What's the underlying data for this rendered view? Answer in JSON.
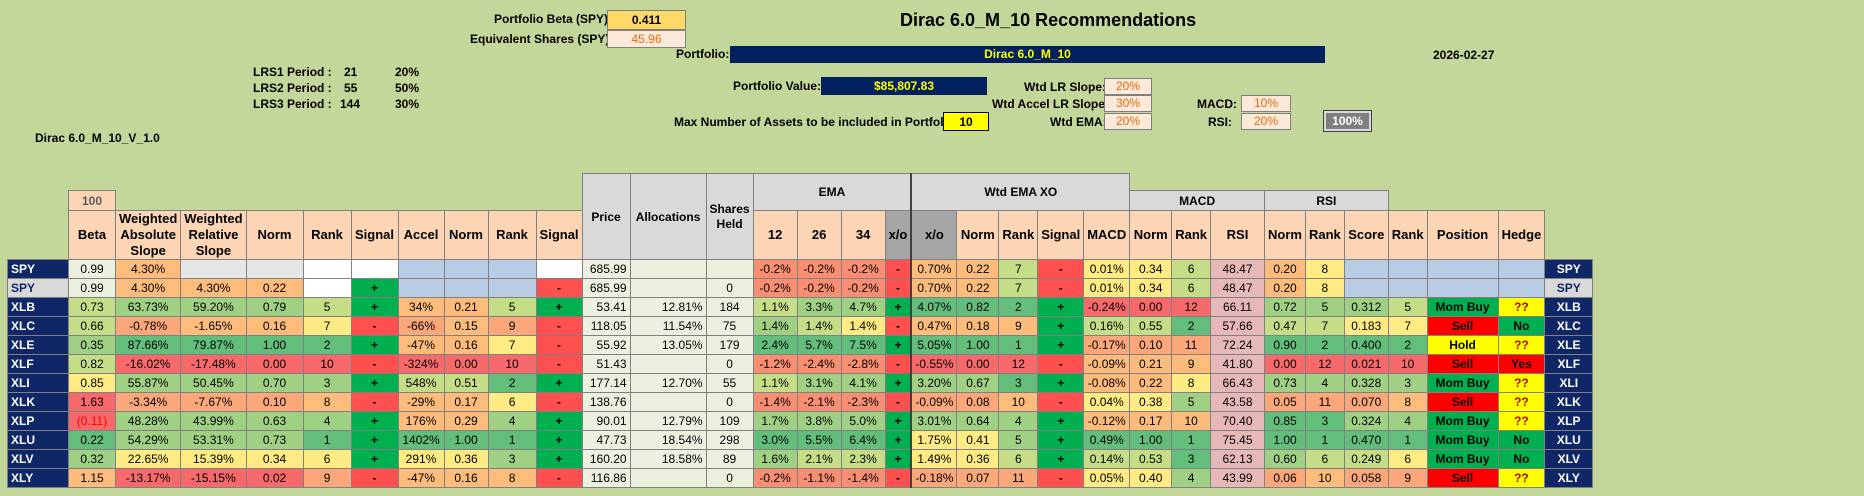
{
  "header": {
    "portfolio_beta_label": "Portfolio Beta (SPY):",
    "portfolio_beta_value": "0.411",
    "equiv_shares_label": "Equivalent Shares (SPY):",
    "equiv_shares_value": "45.96",
    "title": "Dirac 6.0_M_10 Recommendations",
    "portfolio_label": "Portfolio:",
    "portfolio_name": "Dirac 6.0_M_10",
    "date": "2026-02-27",
    "portfolio_value_label": "Portfolio Value:",
    "portfolio_value": "$85,807.83",
    "max_assets_label": "Max Number of Assets to be included in Portfolio:",
    "max_assets_value": "10",
    "version": "Dirac 6.0_M_10_V_1.0"
  },
  "lrs": [
    {
      "label": "LRS1 Period :",
      "period": "21",
      "pct": "20%"
    },
    {
      "label": "LRS2 Period :",
      "period": "55",
      "pct": "50%"
    },
    {
      "label": "LRS3 Period :",
      "period": "144",
      "pct": "30%"
    }
  ],
  "weights": {
    "wtd_lr_slope_label": "Wtd LR Slope:",
    "wtd_lr_slope": "20%",
    "wtd_accel_label": "Wtd Accel LR Slope:",
    "wtd_accel": "30%",
    "wtd_ema_label": "Wtd EMA:",
    "wtd_ema": "20%",
    "macd_label": "MACD:",
    "macd": "10%",
    "rsi_label": "RSI:",
    "rsi": "20%",
    "total": "100%"
  },
  "table": {
    "group_ema": "EMA",
    "group_wtd_ema_xo": "Wtd EMA XO",
    "group_macd": "MACD",
    "group_rsi": "RSI",
    "beta_top": "100",
    "headers": [
      "Beta",
      "Weighted Absolute Slope",
      "Weighted Relative Slope",
      "Norm",
      "Rank",
      "Signal",
      "Accel",
      "Norm",
      "Rank",
      "Signal",
      "Price",
      "Allocations",
      "Shares Held",
      "12",
      "26",
      "34",
      "x/o",
      "x/o",
      "Norm",
      "Rank",
      "Signal",
      "MACD",
      "Norm",
      "Rank",
      "RSI",
      "Norm",
      "Rank",
      "Score",
      "Rank",
      "Position",
      "Hedge"
    ],
    "rows": [
      {
        "tk": "SPY",
        "beta": "0.99",
        "was": "4.30%",
        "wrs": "",
        "norm": "",
        "rank": "",
        "sig": "",
        "accel": "",
        "n2": "",
        "r2": "",
        "s2": "",
        "price": "685.99",
        "alloc": "",
        "shares": "",
        "e12": "-0.2%",
        "e26": "-0.2%",
        "e34": "-0.2%",
        "xo": "-",
        "wxo": "0.70%",
        "n3": "0.22",
        "r3": "7",
        "s3": "-",
        "macd": "0.01%",
        "n4": "0.34",
        "r4": "6",
        "rsi": "48.47",
        "n5": "0.20",
        "r5": "8",
        "score": "",
        "pos": "",
        "hedge": "",
        "tk2": "SPY"
      },
      {
        "tk": "SPY",
        "beta": "0.99",
        "was": "4.30%",
        "wrs": "4.30%",
        "norm": "0.22",
        "rank": "",
        "sig": "+",
        "accel": "",
        "n2": "",
        "r2": "",
        "s2": "-",
        "price": "685.99",
        "alloc": "",
        "shares": "0",
        "e12": "-0.2%",
        "e26": "-0.2%",
        "e34": "-0.2%",
        "xo": "-",
        "wxo": "0.70%",
        "n3": "0.22",
        "r3": "7",
        "s3": "-",
        "macd": "0.01%",
        "n4": "0.34",
        "r4": "6",
        "rsi": "48.47",
        "n5": "0.20",
        "r5": "8",
        "score": "",
        "pos": "",
        "hedge": "",
        "tk2": "SPY"
      },
      {
        "tk": "XLB",
        "beta": "0.73",
        "was": "63.73%",
        "wrs": "59.20%",
        "norm": "0.79",
        "rank": "5",
        "sig": "+",
        "accel": "34%",
        "n2": "0.21",
        "r2": "5",
        "s2": "+",
        "price": "53.41",
        "alloc": "12.81%",
        "shares": "184",
        "e12": "1.1%",
        "e26": "3.3%",
        "e34": "4.7%",
        "xo": "+",
        "wxo": "4.07%",
        "n3": "0.82",
        "r3": "2",
        "s3": "+",
        "macd": "-0.24%",
        "n4": "0.00",
        "r4": "12",
        "rsi": "66.11",
        "n5": "0.72",
        "r5": "5",
        "score": "0.312",
        "pos": "Mom Buy",
        "hedge": "??",
        "tk2": "XLB"
      },
      {
        "tk": "XLC",
        "beta": "0.66",
        "was": "-0.78%",
        "wrs": "-1.65%",
        "norm": "0.16",
        "rank": "7",
        "sig": "-",
        "accel": "-66%",
        "n2": "0.15",
        "r2": "9",
        "s2": "-",
        "price": "118.05",
        "alloc": "11.54%",
        "shares": "75",
        "e12": "1.4%",
        "e26": "1.4%",
        "e34": "1.4%",
        "xo": "-",
        "wxo": "0.47%",
        "n3": "0.18",
        "r3": "9",
        "s3": "+",
        "macd": "0.16%",
        "n4": "0.55",
        "r4": "2",
        "rsi": "57.66",
        "n5": "0.47",
        "r5": "7",
        "score": "0.183",
        "pos": "Sell",
        "hedge": "No",
        "tk2": "XLC"
      },
      {
        "tk": "XLE",
        "beta": "0.35",
        "was": "87.66%",
        "wrs": "79.87%",
        "norm": "1.00",
        "rank": "2",
        "sig": "+",
        "accel": "-47%",
        "n2": "0.16",
        "r2": "7",
        "s2": "-",
        "price": "55.92",
        "alloc": "13.05%",
        "shares": "179",
        "e12": "2.4%",
        "e26": "5.7%",
        "e34": "7.5%",
        "xo": "+",
        "wxo": "5.05%",
        "n3": "1.00",
        "r3": "1",
        "s3": "+",
        "macd": "-0.17%",
        "n4": "0.10",
        "r4": "11",
        "rsi": "72.24",
        "n5": "0.90",
        "r5": "2",
        "score": "0.400",
        "pos": "Hold",
        "hedge": "??",
        "tk2": "XLE"
      },
      {
        "tk": "XLF",
        "beta": "0.82",
        "was": "-16.02%",
        "wrs": "-17.48%",
        "norm": "0.00",
        "rank": "10",
        "sig": "-",
        "accel": "-324%",
        "n2": "0.00",
        "r2": "10",
        "s2": "-",
        "price": "51.43",
        "alloc": "",
        "shares": "0",
        "e12": "-1.2%",
        "e26": "-2.4%",
        "e34": "-2.8%",
        "xo": "-",
        "wxo": "-0.55%",
        "n3": "0.00",
        "r3": "12",
        "s3": "-",
        "macd": "-0.09%",
        "n4": "0.21",
        "r4": "9",
        "rsi": "41.80",
        "n5": "0.00",
        "r5": "12",
        "score": "0.021",
        "pos": "Sell",
        "hedge": "Yes",
        "tk2": "XLF"
      },
      {
        "tk": "XLI",
        "beta": "0.85",
        "was": "55.87%",
        "wrs": "50.45%",
        "norm": "0.70",
        "rank": "3",
        "sig": "+",
        "accel": "548%",
        "n2": "0.51",
        "r2": "2",
        "s2": "+",
        "price": "177.14",
        "alloc": "12.70%",
        "shares": "55",
        "e12": "1.1%",
        "e26": "3.1%",
        "e34": "4.1%",
        "xo": "+",
        "wxo": "3.20%",
        "n3": "0.67",
        "r3": "3",
        "s3": "+",
        "macd": "-0.08%",
        "n4": "0.22",
        "r4": "8",
        "rsi": "66.43",
        "n5": "0.73",
        "r5": "4",
        "score": "0.328",
        "pos": "Mom Buy",
        "hedge": "??",
        "tk2": "XLI"
      },
      {
        "tk": "XLK",
        "beta": "1.63",
        "was": "-3.34%",
        "wrs": "-7.67%",
        "norm": "0.10",
        "rank": "8",
        "sig": "-",
        "accel": "-29%",
        "n2": "0.17",
        "r2": "6",
        "s2": "-",
        "price": "138.76",
        "alloc": "",
        "shares": "0",
        "e12": "-1.4%",
        "e26": "-2.1%",
        "e34": "-2.3%",
        "xo": "-",
        "wxo": "-0.09%",
        "n3": "0.08",
        "r3": "10",
        "s3": "-",
        "macd": "0.04%",
        "n4": "0.38",
        "r4": "5",
        "rsi": "43.58",
        "n5": "0.05",
        "r5": "11",
        "score": "0.070",
        "pos": "Sell",
        "hedge": "??",
        "tk2": "XLK"
      },
      {
        "tk": "XLP",
        "beta": "(0.11)",
        "was": "48.28%",
        "wrs": "43.99%",
        "norm": "0.63",
        "rank": "4",
        "sig": "+",
        "accel": "176%",
        "n2": "0.29",
        "r2": "4",
        "s2": "+",
        "price": "90.01",
        "alloc": "12.79%",
        "shares": "109",
        "e12": "1.7%",
        "e26": "3.8%",
        "e34": "5.0%",
        "xo": "+",
        "wxo": "3.01%",
        "n3": "0.64",
        "r3": "4",
        "s3": "+",
        "macd": "-0.12%",
        "n4": "0.17",
        "r4": "10",
        "rsi": "70.40",
        "n5": "0.85",
        "r5": "3",
        "score": "0.324",
        "pos": "Mom Buy",
        "hedge": "??",
        "tk2": "XLP"
      },
      {
        "tk": "XLU",
        "beta": "0.22",
        "was": "54.29%",
        "wrs": "53.31%",
        "norm": "0.73",
        "rank": "1",
        "sig": "+",
        "accel": "1402%",
        "n2": "1.00",
        "r2": "1",
        "s2": "+",
        "price": "47.73",
        "alloc": "18.54%",
        "shares": "298",
        "e12": "3.0%",
        "e26": "5.5%",
        "e34": "6.4%",
        "xo": "+",
        "wxo": "1.75%",
        "n3": "0.41",
        "r3": "5",
        "s3": "+",
        "macd": "0.49%",
        "n4": "1.00",
        "r4": "1",
        "rsi": "75.45",
        "n5": "1.00",
        "r5": "1",
        "score": "0.470",
        "pos": "Mom Buy",
        "hedge": "No",
        "tk2": "XLU"
      },
      {
        "tk": "XLV",
        "beta": "0.32",
        "was": "22.65%",
        "wrs": "15.39%",
        "norm": "0.34",
        "rank": "6",
        "sig": "+",
        "accel": "291%",
        "n2": "0.36",
        "r2": "3",
        "s2": "+",
        "price": "160.20",
        "alloc": "18.58%",
        "shares": "89",
        "e12": "1.6%",
        "e26": "2.1%",
        "e34": "2.3%",
        "xo": "+",
        "wxo": "1.49%",
        "n3": "0.36",
        "r3": "6",
        "s3": "+",
        "macd": "0.14%",
        "n4": "0.53",
        "r4": "3",
        "rsi": "62.13",
        "n5": "0.60",
        "r5": "6",
        "score": "0.249",
        "pos": "Mom Buy",
        "hedge": "No",
        "tk2": "XLV"
      },
      {
        "tk": "XLY",
        "beta": "1.15",
        "was": "-13.17%",
        "wrs": "-15.15%",
        "norm": "0.02",
        "rank": "9",
        "sig": "-",
        "accel": "-47%",
        "n2": "0.16",
        "r2": "8",
        "s2": "-",
        "price": "116.86",
        "alloc": "",
        "shares": "0",
        "e12": "-0.2%",
        "e26": "-1.1%",
        "e34": "-1.4%",
        "xo": "-",
        "wxo": "-0.18%",
        "n3": "0.07",
        "r3": "11",
        "s3": "-",
        "macd": "0.05%",
        "n4": "0.40",
        "r4": "4",
        "rsi": "43.99",
        "n5": "0.06",
        "r5": "10",
        "score": "0.058",
        "pos": "Sell",
        "hedge": "??",
        "tk2": "XLY"
      }
    ]
  }
}
